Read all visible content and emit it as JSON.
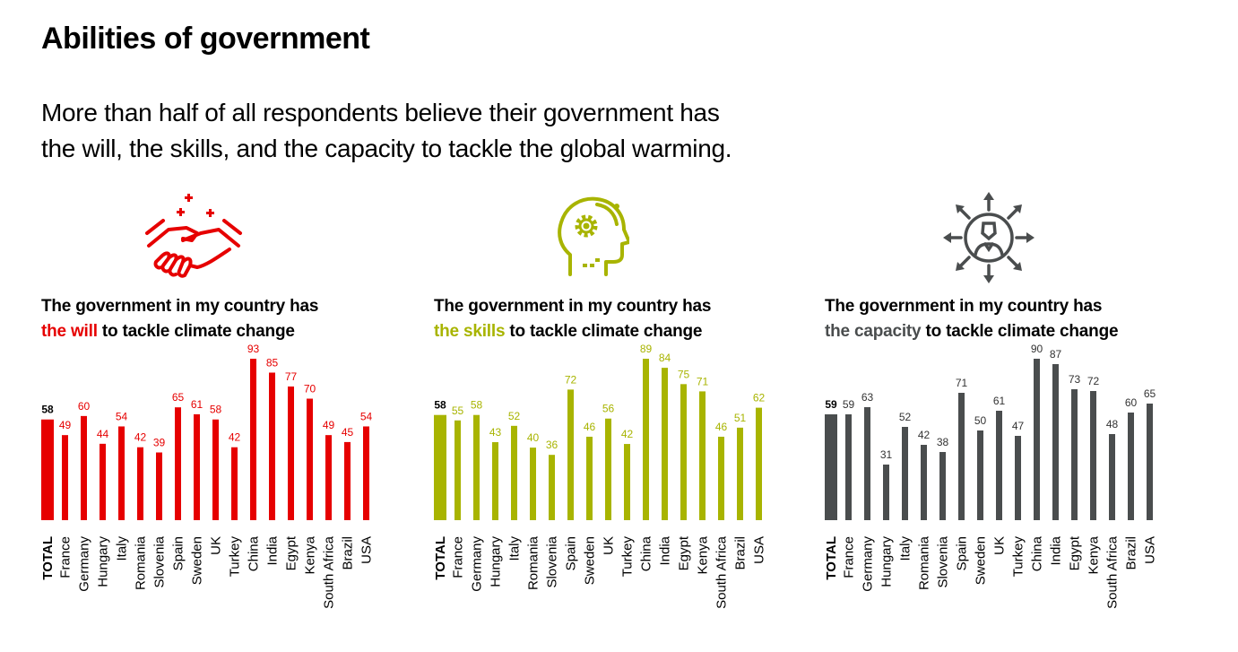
{
  "title": "Abilities of government",
  "subtitle_lines": [
    "More than half of all respondents believe their government has",
    "the will, the skills, and the capacity to tackle the global warming."
  ],
  "panels": [
    {
      "icon": "handshake-icon",
      "line1": "The government in my country has",
      "highlight": "the will",
      "rest": " to tackle climate change",
      "color": "#e60000"
    },
    {
      "icon": "head-gear-icon",
      "line1": "The government in my country has",
      "highlight": "the skills",
      "rest": " to tackle climate change",
      "color": "#a8b400"
    },
    {
      "icon": "person-expanding-arrows-icon",
      "line1": "The government in my country has",
      "highlight": "the capacity",
      "rest": " to tackle climate change",
      "color": "#4a4d4e"
    }
  ],
  "chart_data": [
    {
      "type": "bar",
      "color": "#e60000",
      "categories": [
        "TOTAL",
        "France",
        "Germany",
        "Hungary",
        "Italy",
        "Romania",
        "Slovenia",
        "Spain",
        "Sweden",
        "UK",
        "Turkey",
        "China",
        "India",
        "Egypt",
        "Kenya",
        "South Africa",
        "Brazil",
        "USA"
      ],
      "values": [
        58,
        49,
        60,
        44,
        54,
        42,
        39,
        65,
        61,
        58,
        42,
        93,
        85,
        77,
        70,
        49,
        45,
        54
      ],
      "ylim": [
        0,
        93
      ]
    },
    {
      "type": "bar",
      "color": "#a8b400",
      "categories": [
        "TOTAL",
        "France",
        "Germany",
        "Hungary",
        "Italy",
        "Romania",
        "Slovenia",
        "Spain",
        "Sweden",
        "UK",
        "Turkey",
        "China",
        "India",
        "Egypt",
        "Kenya",
        "South Africa",
        "Brazil",
        "USA"
      ],
      "values": [
        58,
        55,
        58,
        43,
        52,
        40,
        36,
        72,
        46,
        56,
        42,
        89,
        84,
        75,
        71,
        46,
        51,
        62
      ],
      "ylim": [
        0,
        89
      ]
    },
    {
      "type": "bar",
      "color": "#4a4d4e",
      "categories": [
        "TOTAL",
        "France",
        "Germany",
        "Hungary",
        "Italy",
        "Romania",
        "Slovenia",
        "Spain",
        "Sweden",
        "UK",
        "Turkey",
        "China",
        "India",
        "Egypt",
        "Kenya",
        "South Africa",
        "Brazil",
        "USA"
      ],
      "values": [
        59,
        59,
        63,
        31,
        52,
        42,
        38,
        71,
        50,
        61,
        47,
        90,
        87,
        73,
        72,
        48,
        60,
        65
      ],
      "ylim": [
        0,
        90
      ]
    }
  ]
}
